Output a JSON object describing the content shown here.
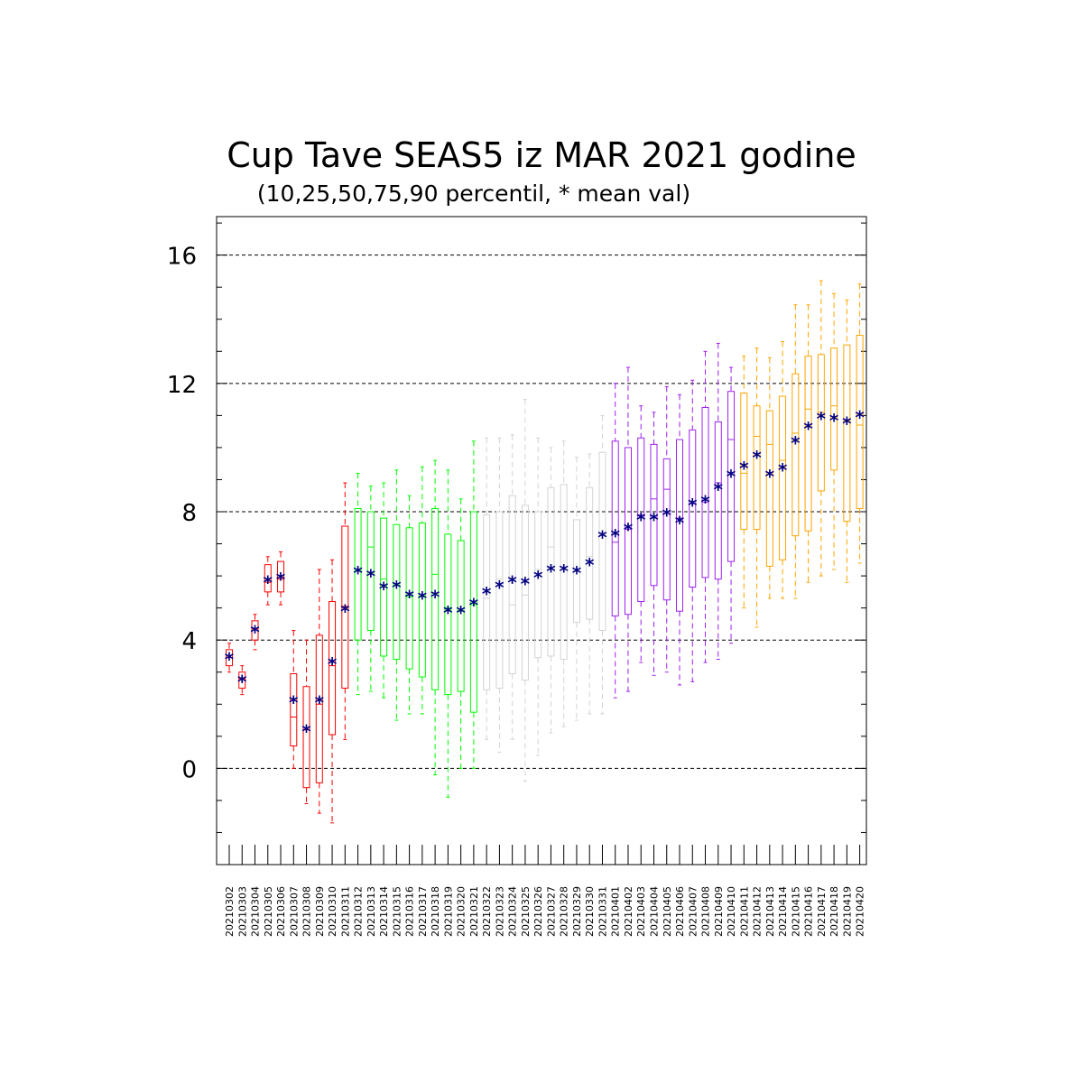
{
  "chart_data": {
    "type": "box",
    "title": "Cup Tave SEAS5 iz MAR 2021 godine",
    "subtitle": "(10,25,50,75,90 percentil, * mean val)",
    "ylim": [
      -3.0,
      17.2
    ],
    "yticks": [
      0,
      4,
      8,
      12,
      16
    ],
    "grid": "horizontal dashed at major ticks",
    "colors": {
      "red": "#ff0000",
      "green": "#00ff00",
      "silver": "#d3d3d3",
      "purple": "#a020f0",
      "orange": "#ffa500",
      "mean": "#000080"
    },
    "boxes": [
      {
        "date": "20210302",
        "p10": 3.0,
        "p25": 3.2,
        "p50": 3.45,
        "p75": 3.7,
        "p90": 3.9,
        "mean": 3.45,
        "color": "red"
      },
      {
        "date": "20210303",
        "p10": 2.3,
        "p25": 2.5,
        "p50": 2.8,
        "p75": 3.0,
        "p90": 3.2,
        "mean": 2.75,
        "color": "red"
      },
      {
        "date": "20210304",
        "p10": 3.7,
        "p25": 4.0,
        "p50": 4.35,
        "p75": 4.6,
        "p90": 4.8,
        "mean": 4.3,
        "color": "red"
      },
      {
        "date": "20210305",
        "p10": 5.1,
        "p25": 5.5,
        "p50": 5.8,
        "p75": 6.35,
        "p90": 6.6,
        "mean": 5.85,
        "color": "red"
      },
      {
        "date": "20210306",
        "p10": 5.1,
        "p25": 5.5,
        "p50": 5.9,
        "p75": 6.45,
        "p90": 6.75,
        "mean": 5.95,
        "color": "red"
      },
      {
        "date": "20210307",
        "p10": 0.0,
        "p25": 0.7,
        "p50": 1.6,
        "p75": 2.95,
        "p90": 4.3,
        "mean": 2.1,
        "color": "red"
      },
      {
        "date": "20210308",
        "p10": -1.1,
        "p25": -0.6,
        "p50": 1.2,
        "p75": 2.55,
        "p90": 4.0,
        "mean": 1.2,
        "color": "red"
      },
      {
        "date": "20210309",
        "p10": -1.4,
        "p25": -0.45,
        "p50": 2.0,
        "p75": 4.15,
        "p90": 6.2,
        "mean": 2.1,
        "color": "red"
      },
      {
        "date": "20210310",
        "p10": -1.7,
        "p25": 1.05,
        "p50": 3.2,
        "p75": 5.2,
        "p90": 6.5,
        "mean": 3.3,
        "color": "red"
      },
      {
        "date": "20210311",
        "p10": 0.9,
        "p25": 2.5,
        "p50": 5.05,
        "p75": 7.55,
        "p90": 8.9,
        "mean": 4.95,
        "color": "red"
      },
      {
        "date": "20210312",
        "p10": 2.3,
        "p25": 4.0,
        "p50": 6.2,
        "p75": 8.1,
        "p90": 9.2,
        "mean": 6.15,
        "color": "green"
      },
      {
        "date": "20210313",
        "p10": 2.4,
        "p25": 4.3,
        "p50": 6.9,
        "p75": 8.0,
        "p90": 8.8,
        "mean": 6.05,
        "color": "green"
      },
      {
        "date": "20210314",
        "p10": 2.2,
        "p25": 3.5,
        "p50": 5.9,
        "p75": 7.8,
        "p90": 8.9,
        "mean": 5.65,
        "color": "green"
      },
      {
        "date": "20210315",
        "p10": 1.5,
        "p25": 3.4,
        "p50": 5.7,
        "p75": 7.6,
        "p90": 9.3,
        "mean": 5.7,
        "color": "green"
      },
      {
        "date": "20210316",
        "p10": 1.7,
        "p25": 3.1,
        "p50": 5.35,
        "p75": 7.5,
        "p90": 8.5,
        "mean": 5.4,
        "color": "green"
      },
      {
        "date": "20210317",
        "p10": 1.7,
        "p25": 2.85,
        "p50": 5.35,
        "p75": 7.65,
        "p90": 9.4,
        "mean": 5.35,
        "color": "green"
      },
      {
        "date": "20210318",
        "p10": -0.2,
        "p25": 2.45,
        "p50": 6.05,
        "p75": 8.1,
        "p90": 9.6,
        "mean": 5.4,
        "color": "green"
      },
      {
        "date": "20210319",
        "p10": -0.9,
        "p25": 2.3,
        "p50": 5.0,
        "p75": 7.3,
        "p90": 9.3,
        "mean": 4.9,
        "color": "green"
      },
      {
        "date": "20210320",
        "p10": 0.0,
        "p25": 2.4,
        "p50": 4.9,
        "p75": 7.1,
        "p90": 8.4,
        "mean": 4.9,
        "color": "green"
      },
      {
        "date": "20210321",
        "p10": 0.0,
        "p25": 1.75,
        "p50": 5.1,
        "p75": 8.0,
        "p90": 10.2,
        "mean": 5.15,
        "color": "green"
      },
      {
        "date": "20210322",
        "p10": 0.9,
        "p25": 2.45,
        "p50": 5.3,
        "p75": 7.9,
        "p90": 10.3,
        "mean": 5.5,
        "color": "silver"
      },
      {
        "date": "20210323",
        "p10": 0.5,
        "p25": 2.5,
        "p50": 5.9,
        "p75": 8.0,
        "p90": 10.3,
        "mean": 5.7,
        "color": "silver"
      },
      {
        "date": "20210324",
        "p10": 0.9,
        "p25": 2.95,
        "p50": 5.1,
        "p75": 8.5,
        "p90": 10.4,
        "mean": 5.85,
        "color": "silver"
      },
      {
        "date": "20210325",
        "p10": -0.4,
        "p25": 2.75,
        "p50": 5.4,
        "p75": 8.2,
        "p90": 11.5,
        "mean": 5.8,
        "color": "silver"
      },
      {
        "date": "20210326",
        "p10": 0.4,
        "p25": 3.45,
        "p50": 6.2,
        "p75": 8.0,
        "p90": 10.3,
        "mean": 6.0,
        "color": "silver"
      },
      {
        "date": "20210327",
        "p10": 1.1,
        "p25": 3.5,
        "p50": 6.9,
        "p75": 8.75,
        "p90": 10.0,
        "mean": 6.2,
        "color": "silver"
      },
      {
        "date": "20210328",
        "p10": 1.3,
        "p25": 3.4,
        "p50": 6.2,
        "p75": 8.85,
        "p90": 10.2,
        "mean": 6.2,
        "color": "silver"
      },
      {
        "date": "20210329",
        "p10": 1.5,
        "p25": 4.55,
        "p50": 6.15,
        "p75": 7.75,
        "p90": 9.7,
        "mean": 6.15,
        "color": "silver"
      },
      {
        "date": "20210330",
        "p10": 1.7,
        "p25": 4.65,
        "p50": 6.6,
        "p75": 8.75,
        "p90": 9.8,
        "mean": 6.4,
        "color": "silver"
      },
      {
        "date": "20210331",
        "p10": 1.7,
        "p25": 4.3,
        "p50": 7.3,
        "p75": 9.85,
        "p90": 11.0,
        "mean": 7.25,
        "color": "silver"
      },
      {
        "date": "20210401",
        "p10": 2.2,
        "p25": 4.75,
        "p50": 7.05,
        "p75": 10.2,
        "p90": 12.0,
        "mean": 7.3,
        "color": "purple"
      },
      {
        "date": "20210402",
        "p10": 2.4,
        "p25": 4.8,
        "p50": 7.45,
        "p75": 10.0,
        "p90": 12.5,
        "mean": 7.5,
        "color": "purple"
      },
      {
        "date": "20210403",
        "p10": 3.3,
        "p25": 5.2,
        "p50": 7.9,
        "p75": 10.3,
        "p90": 11.3,
        "mean": 7.8,
        "color": "purple"
      },
      {
        "date": "20210404",
        "p10": 2.9,
        "p25": 5.7,
        "p50": 8.4,
        "p75": 10.1,
        "p90": 11.1,
        "mean": 7.8,
        "color": "purple"
      },
      {
        "date": "20210405",
        "p10": 3.0,
        "p25": 5.25,
        "p50": 8.7,
        "p75": 9.65,
        "p90": 11.9,
        "mean": 7.95,
        "color": "purple"
      },
      {
        "date": "20210406",
        "p10": 2.6,
        "p25": 4.9,
        "p50": 7.8,
        "p75": 10.25,
        "p90": 11.65,
        "mean": 7.7,
        "color": "purple"
      },
      {
        "date": "20210407",
        "p10": 2.7,
        "p25": 5.65,
        "p50": 8.25,
        "p75": 10.55,
        "p90": 12.1,
        "mean": 8.25,
        "color": "purple"
      },
      {
        "date": "20210408",
        "p10": 3.3,
        "p25": 5.95,
        "p50": 8.3,
        "p75": 11.25,
        "p90": 13.0,
        "mean": 8.35,
        "color": "purple"
      },
      {
        "date": "20210409",
        "p10": 3.4,
        "p25": 5.9,
        "p50": 8.9,
        "p75": 10.8,
        "p90": 13.25,
        "mean": 8.75,
        "color": "purple"
      },
      {
        "date": "20210410",
        "p10": 3.9,
        "p25": 6.45,
        "p50": 10.25,
        "p75": 11.75,
        "p90": 12.5,
        "mean": 9.15,
        "color": "purple"
      },
      {
        "date": "20210411",
        "p10": 5.0,
        "p25": 7.45,
        "p50": 9.2,
        "p75": 11.7,
        "p90": 12.85,
        "mean": 9.4,
        "color": "orange"
      },
      {
        "date": "20210412",
        "p10": 4.4,
        "p25": 7.45,
        "p50": 10.35,
        "p75": 11.3,
        "p90": 13.1,
        "mean": 9.75,
        "color": "orange"
      },
      {
        "date": "20210413",
        "p10": 5.3,
        "p25": 6.3,
        "p50": 10.1,
        "p75": 11.15,
        "p90": 12.8,
        "mean": 9.15,
        "color": "orange"
      },
      {
        "date": "20210414",
        "p10": 5.3,
        "p25": 6.5,
        "p50": 9.6,
        "p75": 11.6,
        "p90": 13.3,
        "mean": 9.35,
        "color": "orange"
      },
      {
        "date": "20210415",
        "p10": 5.3,
        "p25": 7.25,
        "p50": 10.45,
        "p75": 12.3,
        "p90": 14.45,
        "mean": 10.2,
        "color": "orange"
      },
      {
        "date": "20210416",
        "p10": 5.8,
        "p25": 7.4,
        "p50": 11.2,
        "p75": 12.85,
        "p90": 14.45,
        "mean": 10.65,
        "color": "orange"
      },
      {
        "date": "20210417",
        "p10": 6.0,
        "p25": 8.65,
        "p50": 11.1,
        "p75": 12.9,
        "p90": 15.2,
        "mean": 10.95,
        "color": "orange"
      },
      {
        "date": "20210418",
        "p10": 6.2,
        "p25": 9.3,
        "p50": 11.3,
        "p75": 13.1,
        "p90": 14.8,
        "mean": 10.9,
        "color": "orange"
      },
      {
        "date": "20210419",
        "p10": 5.8,
        "p25": 7.7,
        "p50": 10.85,
        "p75": 13.2,
        "p90": 14.6,
        "mean": 10.8,
        "color": "orange"
      },
      {
        "date": "20210420",
        "p10": 6.4,
        "p25": 8.1,
        "p50": 10.7,
        "p75": 13.5,
        "p90": 15.1,
        "mean": 11.0,
        "color": "orange"
      }
    ]
  }
}
